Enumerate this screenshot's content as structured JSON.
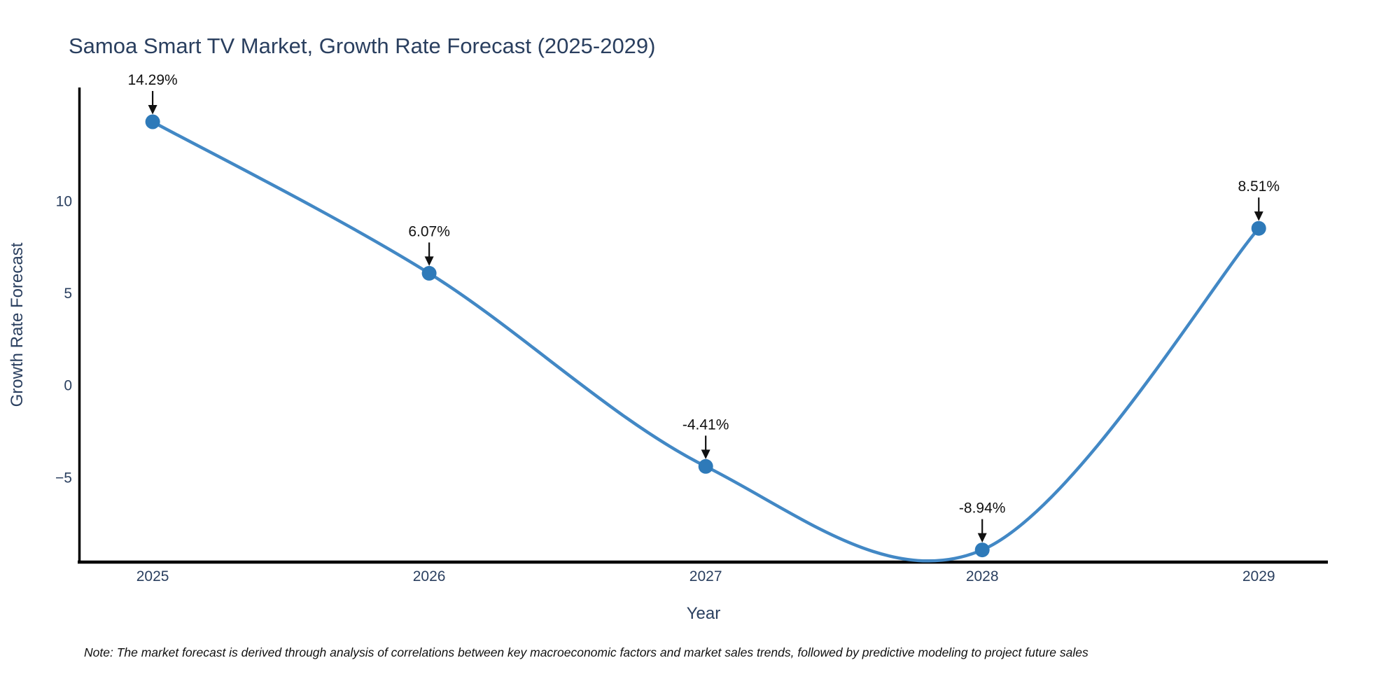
{
  "chart_data": {
    "type": "line",
    "title": "Samoa Smart TV Market, Growth Rate Forecast (2025-2029)",
    "xlabel": "Year",
    "ylabel": "Growth Rate Forecast",
    "note": "Note: The market forecast is derived through analysis of correlations between key macroeconomic factors and market sales trends, followed by predictive modeling to project future sales",
    "x": [
      2025,
      2026,
      2027,
      2028,
      2029
    ],
    "values": [
      14.29,
      6.07,
      -4.41,
      -8.94,
      8.51
    ],
    "point_labels": [
      "14.29%",
      "6.07%",
      "-4.41%",
      "-8.94%",
      "8.51%"
    ],
    "xticks": [
      2025,
      2026,
      2027,
      2028,
      2029
    ],
    "yticks": [
      10,
      5,
      0,
      -5
    ],
    "xlim": [
      2024.734,
      2029.25
    ],
    "ylim": [
      -9.6,
      16.15
    ],
    "grid": false,
    "legend": "none",
    "line_shape": "spline",
    "marker_size": 21,
    "line_width": 4.5,
    "colors": {
      "line": "#4288c5",
      "marker": "#2e7ab9",
      "axis": "#000000",
      "title_text": "#2a3f5f",
      "annotation_text": "#111111"
    }
  }
}
